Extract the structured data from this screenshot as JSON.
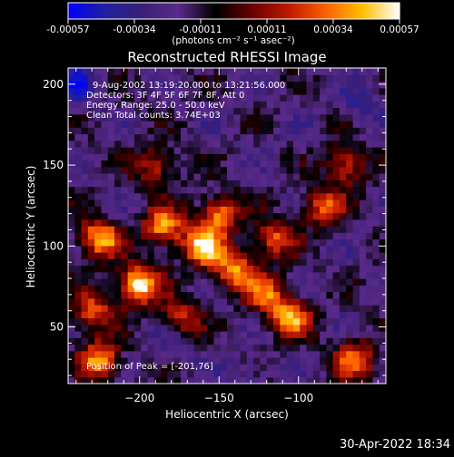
{
  "chart_data": {
    "type": "heatmap",
    "title": "Reconstructed RHESSI Image",
    "xlabel": "Heliocentric X (arcsec)",
    "ylabel": "Heliocentric Y (arcsec)",
    "xlim": [
      -245,
      -45
    ],
    "ylim": [
      15,
      210
    ],
    "x_ticks": [
      -200,
      -150,
      -100
    ],
    "y_ticks": [
      50,
      100,
      150,
      200
    ],
    "colorbar": {
      "label": "(photons cm⁻² s⁻¹ asec⁻²)",
      "range": [
        -0.00057,
        0.00057
      ],
      "ticks": [
        "-0.00057",
        "-0.00034",
        "-0.00011",
        "0.00011",
        "0.00034",
        "0.00057"
      ],
      "colormap": [
        "#0000ff",
        "#2020a0",
        "#3a1f78",
        "#5a2a8a",
        "#000000",
        "#6a0000",
        "#c01a00",
        "#ff6000",
        "#ffc000",
        "#ffffff"
      ]
    },
    "annotations": [
      "9-Aug-2002 13:19:20.000 to 13:21:56.000",
      "Detectors: 3F 4F 5F 6F 7F 8F, Att 0",
      "Energy Range: 25.0 - 50.0 keV",
      "Clean    Total counts: 3.74E+03"
    ],
    "peak_label": "Position of Peak = [-201,76]",
    "peak": [
      -201,
      76
    ],
    "peak_value": 0.00057,
    "hot_spots": [
      {
        "x": -201,
        "y": 76,
        "value": 0.00057
      },
      {
        "x": -225,
        "y": 105,
        "value": 0.00045
      },
      {
        "x": -185,
        "y": 112,
        "value": 0.0004
      },
      {
        "x": -160,
        "y": 100,
        "value": 0.00048
      },
      {
        "x": -150,
        "y": 120,
        "value": 0.00035
      },
      {
        "x": -140,
        "y": 85,
        "value": 0.00038
      },
      {
        "x": -120,
        "y": 70,
        "value": 0.0003
      },
      {
        "x": -105,
        "y": 55,
        "value": 0.00036
      },
      {
        "x": -225,
        "y": 30,
        "value": 0.0004
      },
      {
        "x": -65,
        "y": 30,
        "value": 0.00032
      },
      {
        "x": -85,
        "y": 125,
        "value": 0.00028
      },
      {
        "x": -70,
        "y": 150,
        "value": 0.00025
      },
      {
        "x": -190,
        "y": 150,
        "value": 0.00022
      },
      {
        "x": -230,
        "y": 60,
        "value": 0.00026
      },
      {
        "x": -175,
        "y": 55,
        "value": 0.0003
      },
      {
        "x": -115,
        "y": 105,
        "value": 0.00027
      }
    ],
    "cold_spots": [
      {
        "x": -240,
        "y": 200,
        "value": -0.00045
      },
      {
        "x": -180,
        "y": 45,
        "value": -0.0004
      },
      {
        "x": -60,
        "y": 190,
        "value": -0.00035
      },
      {
        "x": -130,
        "y": 25,
        "value": -0.0003
      }
    ],
    "grid": false,
    "legend": "none"
  },
  "footer": {
    "timestamp": "30-Apr-2022 18:34"
  }
}
